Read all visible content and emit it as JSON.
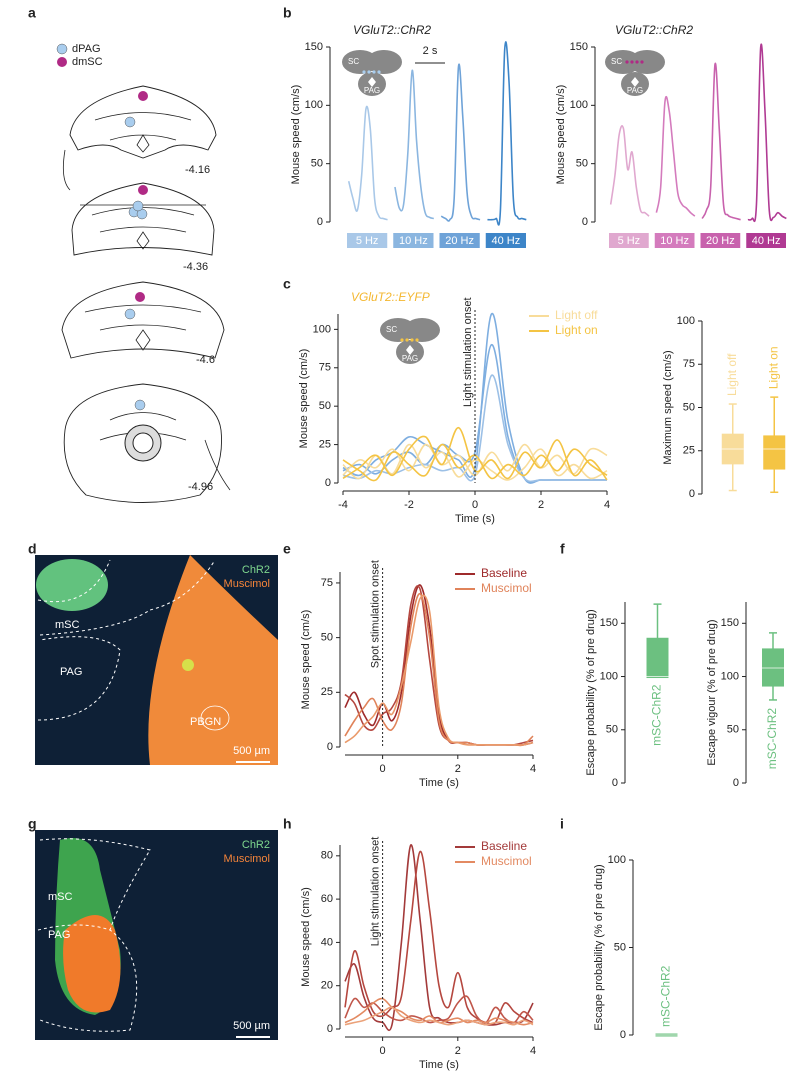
{
  "panels": {
    "labels": [
      "a",
      "b",
      "c",
      "d",
      "e",
      "f",
      "g",
      "h",
      "i"
    ],
    "a": {
      "legend": [
        "dPAG",
        "dmSC"
      ],
      "sections": [
        "-4.16",
        "-4.36",
        "-4.6",
        "-4.96"
      ]
    },
    "inset": [
      "SC",
      "PAG"
    ],
    "d": {
      "stains": [
        "ChR2",
        "Muscimol"
      ],
      "regions": [
        "mSC",
        "PAG",
        "PBGN"
      ],
      "scale": "500 µm"
    },
    "g": {
      "stains": [
        "ChR2",
        "Muscimol"
      ],
      "regions": [
        "mSC",
        "PAG"
      ],
      "scale": "500 µm"
    }
  },
  "chart_data": [
    {
      "type": "traces",
      "title": "VGluT2::ChR2",
      "ylabel": "Mouse speed (cm/s)",
      "ylim": [
        0,
        150
      ],
      "yticks": [
        0,
        50,
        100,
        150
      ],
      "scale_bar": "2 s",
      "series": [
        {
          "name": "5 Hz",
          "color": "#a9c8e8",
          "values": [
            35,
            20,
            10,
            40,
            97,
            80,
            20,
            5,
            3,
            2
          ]
        },
        {
          "name": "10 Hz",
          "color": "#8bb6e0",
          "values": [
            30,
            12,
            15,
            60,
            130,
            70,
            30,
            8,
            4,
            3
          ]
        },
        {
          "name": "20 Hz",
          "color": "#6fa3d8",
          "values": [
            5,
            3,
            2,
            20,
            133,
            90,
            25,
            5,
            3,
            2
          ]
        },
        {
          "name": "40 Hz",
          "color": "#3d85c8",
          "values": [
            2,
            2,
            3,
            10,
            148,
            120,
            20,
            4,
            3,
            2
          ]
        }
      ]
    },
    {
      "type": "traces",
      "title": "VGluT2::ChR2",
      "ylabel": "Mouse speed (cm/s)",
      "ylim": [
        0,
        150
      ],
      "yticks": [
        0,
        50,
        100,
        150
      ],
      "series": [
        {
          "name": "5 Hz",
          "color": "#e0a8cf",
          "values": [
            15,
            40,
            75,
            80,
            45,
            60,
            30,
            10,
            8,
            5
          ]
        },
        {
          "name": "10 Hz",
          "color": "#d47bbd",
          "values": [
            8,
            30,
            103,
            95,
            60,
            25,
            15,
            12,
            8,
            5
          ]
        },
        {
          "name": "20 Hz",
          "color": "#c862ad",
          "values": [
            3,
            10,
            30,
            135,
            80,
            15,
            6,
            4,
            3,
            2
          ]
        },
        {
          "name": "40 Hz",
          "color": "#b03a93",
          "values": [
            2,
            3,
            15,
            150,
            95,
            10,
            4,
            8,
            5,
            3
          ]
        }
      ]
    },
    {
      "type": "line",
      "title": "VGluT2::EYFP",
      "ylabel": "Mouse speed (cm/s)",
      "xlabel": "Time (s)",
      "annotation": "Light stimulation onset",
      "vline": 0,
      "xlim": [
        -4,
        4
      ],
      "xticks": [
        -4,
        -2,
        0,
        2,
        4
      ],
      "ylim": [
        0,
        110
      ],
      "yticks": [
        0,
        25,
        50,
        75,
        100
      ],
      "x": [
        -4,
        -3.5,
        -3,
        -2.5,
        -2,
        -1.5,
        -1,
        -0.5,
        0,
        0.5,
        1,
        1.5,
        2,
        2.5,
        3,
        3.5,
        4
      ],
      "series": [
        {
          "color": "#7eaee0",
          "values": [
            10,
            5,
            15,
            20,
            30,
            25,
            20,
            15,
            10,
            110,
            40,
            3,
            2,
            2,
            2,
            2,
            2
          ]
        },
        {
          "color": "#7eaee0",
          "values": [
            8,
            12,
            6,
            15,
            20,
            12,
            25,
            18,
            20,
            90,
            30,
            3,
            2,
            2,
            2,
            2,
            2
          ]
        },
        {
          "color": "#9cc0e6",
          "values": [
            5,
            3,
            8,
            6,
            10,
            12,
            8,
            10,
            5,
            70,
            25,
            3,
            2,
            2,
            2,
            2,
            2
          ]
        },
        {
          "name": "Light off",
          "color": "#f8dc9a",
          "values": [
            5,
            15,
            10,
            22,
            8,
            25,
            12,
            18,
            5,
            20,
            8,
            25,
            10,
            18,
            6,
            22,
            18
          ]
        },
        {
          "color": "#f8dc9a",
          "values": [
            12,
            3,
            18,
            6,
            25,
            10,
            20,
            4,
            15,
            8,
            2,
            10,
            22,
            5,
            12,
            3,
            8
          ]
        },
        {
          "name": "Light on",
          "color": "#f4c444",
          "values": [
            3,
            10,
            18,
            5,
            22,
            30,
            12,
            36,
            8,
            15,
            3,
            20,
            10,
            28,
            5,
            15,
            2
          ]
        },
        {
          "color": "#f4c444",
          "values": [
            15,
            8,
            2,
            20,
            12,
            5,
            25,
            10,
            18,
            3,
            12,
            5,
            18,
            8,
            22,
            12,
            5
          ]
        }
      ]
    },
    {
      "type": "box",
      "ylabel": "Maximum speed (cm/s)",
      "ylim": [
        0,
        100
      ],
      "yticks": [
        0,
        25,
        50,
        75,
        100
      ],
      "boxes": [
        {
          "name": "Light off",
          "color": "#f8dc9a",
          "min": 2,
          "q1": 18,
          "median": 26,
          "q3": 34,
          "max": 52
        },
        {
          "name": "Light on",
          "color": "#f4c444",
          "min": 1,
          "q1": 15,
          "median": 26,
          "q3": 33,
          "max": 56
        }
      ]
    },
    {
      "type": "line",
      "ylabel": "Mouse speed (cm/s)",
      "xlabel": "Time (s)",
      "annotation": "Spot stimulation onset",
      "vline": 0,
      "xlim": [
        -1,
        4
      ],
      "xticks": [
        0,
        2,
        4
      ],
      "ylim": [
        0,
        80
      ],
      "yticks": [
        0,
        25,
        50,
        75
      ],
      "x": [
        -1,
        -0.75,
        -0.5,
        -0.25,
        0,
        0.25,
        0.5,
        0.75,
        1,
        1.25,
        1.5,
        1.75,
        2,
        2.25,
        2.5,
        2.75,
        3,
        3.25,
        3.5,
        3.75,
        4
      ],
      "series": [
        {
          "name": "Baseline",
          "color": "#9e2a2b",
          "values": [
            18,
            25,
            15,
            10,
            20,
            12,
            25,
            60,
            74,
            55,
            15,
            3,
            2,
            2,
            1,
            1,
            1,
            1,
            1,
            1,
            2
          ]
        },
        {
          "color": "#b5473f",
          "values": [
            24,
            20,
            10,
            8,
            15,
            18,
            30,
            65,
            72,
            40,
            10,
            3,
            2,
            2,
            1,
            1,
            1,
            1,
            1,
            2,
            3
          ]
        },
        {
          "name": "Muscimol",
          "color": "#e0835a",
          "values": [
            5,
            12,
            18,
            22,
            12,
            8,
            20,
            55,
            70,
            50,
            12,
            3,
            2,
            2,
            1,
            1,
            1,
            1,
            1,
            1,
            5
          ]
        },
        {
          "color": "#ea9a6a",
          "values": [
            2,
            5,
            10,
            14,
            20,
            15,
            28,
            48,
            68,
            62,
            18,
            4,
            2,
            1,
            1,
            1,
            1,
            1,
            1,
            1,
            2
          ]
        }
      ]
    },
    {
      "type": "box",
      "ylabel": "Escape probability (% of pre drug)",
      "ylim": [
        0,
        170
      ],
      "yticks": [
        0,
        50,
        100,
        150
      ],
      "boxes": [
        {
          "name": "mSC-ChR2",
          "color": "#6cc080",
          "min": 100,
          "q1": 100,
          "median": 100,
          "q3": 135,
          "max": 168
        }
      ]
    },
    {
      "type": "box",
      "ylabel": "Escape vigour (% of pre drug)",
      "ylim": [
        0,
        170
      ],
      "yticks": [
        0,
        50,
        100,
        150
      ],
      "boxes": [
        {
          "name": "mSC-ChR2",
          "color": "#6cc080",
          "min": 78,
          "q1": 92,
          "median": 108,
          "q3": 125,
          "max": 141
        }
      ]
    },
    {
      "type": "line",
      "ylabel": "Mouse speed (cm/s)",
      "xlabel": "Time (s)",
      "annotation": "Light stimulation onset",
      "vline": 0,
      "xlim": [
        -1,
        4
      ],
      "xticks": [
        0,
        2,
        4
      ],
      "ylim": [
        0,
        85
      ],
      "yticks": [
        0,
        20,
        40,
        60,
        80
      ],
      "x": [
        -1,
        -0.75,
        -0.5,
        -0.25,
        0,
        0.25,
        0.5,
        0.75,
        1,
        1.25,
        1.5,
        1.75,
        2,
        2.25,
        2.5,
        2.75,
        3,
        3.25,
        3.5,
        3.75,
        4
      ],
      "series": [
        {
          "name": "Baseline",
          "color": "#a33a3a",
          "values": [
            22,
            30,
            15,
            5,
            3,
            2,
            40,
            85,
            50,
            10,
            5,
            3,
            3,
            4,
            3,
            2,
            2,
            3,
            3,
            4,
            12
          ]
        },
        {
          "color": "#b5473f",
          "values": [
            10,
            36,
            20,
            8,
            6,
            10,
            15,
            50,
            82,
            55,
            20,
            10,
            26,
            10,
            5,
            3,
            3,
            12,
            8,
            5,
            3
          ]
        },
        {
          "color": "#c0564a",
          "values": [
            5,
            14,
            10,
            12,
            8,
            5,
            4,
            6,
            5,
            3,
            4,
            5,
            12,
            15,
            6,
            3,
            10,
            5,
            3,
            8,
            4
          ]
        },
        {
          "name": "Muscimol",
          "color": "#e38a62",
          "values": [
            3,
            5,
            8,
            12,
            14,
            10,
            8,
            5,
            4,
            6,
            3,
            4,
            5,
            3,
            4,
            3,
            5,
            4,
            3,
            2,
            3
          ]
        },
        {
          "color": "#eba27a",
          "values": [
            2,
            3,
            4,
            6,
            8,
            10,
            6,
            4,
            3,
            4,
            3,
            2,
            3,
            4,
            3,
            2,
            3,
            3,
            2,
            4,
            2
          ]
        }
      ]
    },
    {
      "type": "box",
      "ylabel": "Escape probability (% of pre drug)",
      "ylim": [
        0,
        100
      ],
      "yticks": [
        0,
        50,
        100
      ],
      "boxes": [
        {
          "name": "mSC-ChR2",
          "color": "#6cc080",
          "min": 0,
          "q1": 0,
          "median": 0,
          "q3": 0,
          "max": 0
        }
      ]
    }
  ]
}
